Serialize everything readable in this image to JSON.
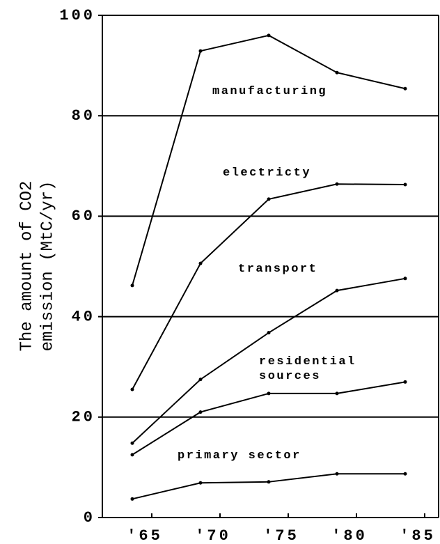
{
  "chart_data": {
    "type": "line",
    "ylabel": [
      "The amount of CO2",
      "emission (MtC/yr)"
    ],
    "categories": [
      "'65",
      "'70",
      "'75",
      "'80",
      "'85"
    ],
    "ylim": [
      0,
      100
    ],
    "yticks": [
      0,
      20,
      40,
      60,
      80,
      100
    ],
    "grid": true,
    "series": [
      {
        "name": "manufacturing",
        "color": "#000000",
        "values": [
          46.2,
          92.9,
          96.0,
          88.6,
          85.4
        ]
      },
      {
        "name": "electricty",
        "color": "#000000",
        "values": [
          25.5,
          50.6,
          63.4,
          66.4,
          66.3
        ]
      },
      {
        "name": "transport",
        "color": "#000000",
        "values": [
          14.8,
          27.5,
          36.8,
          45.2,
          47.6
        ]
      },
      {
        "name": "residential sources",
        "color": "#000000",
        "values": [
          12.5,
          21.0,
          24.7,
          24.7,
          27.0
        ]
      },
      {
        "name": "primary sector",
        "color": "#000000",
        "values": [
          3.7,
          6.9,
          7.1,
          8.7,
          8.7
        ]
      }
    ]
  }
}
